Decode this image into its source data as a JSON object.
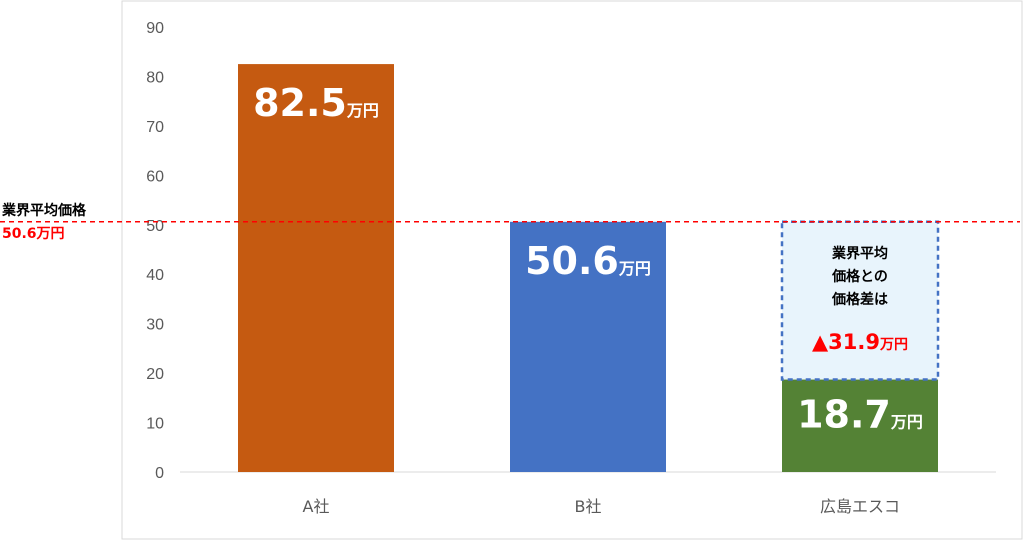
{
  "chart_data": {
    "type": "bar",
    "categories": [
      "A社",
      "B社",
      "広島エスコ"
    ],
    "values": [
      82.5,
      50.6,
      18.7
    ],
    "data_labels": [
      "82.5",
      "50.6",
      "18.7"
    ],
    "data_label_unit": "万円",
    "ylim": [
      0,
      90
    ],
    "yticks": [
      0,
      10,
      20,
      30,
      40,
      50,
      60,
      70,
      80,
      90
    ],
    "grid": false,
    "bar_colors": [
      "#c55a11",
      "#4472c4",
      "#548235"
    ],
    "reference_line": {
      "value": 50.6,
      "label_line1": "業界平均価格",
      "label_line2": "50.6万円",
      "color": "#ff0000"
    },
    "difference_annotation": {
      "category": "広島エスコ",
      "from": 18.7,
      "to": 50.6,
      "text_lines": [
        "業界平均",
        "価格との",
        "価格差は"
      ],
      "value": "▲31.9",
      "unit": "万円",
      "fill": "#e8f4fc",
      "border": "#4472c4"
    }
  }
}
